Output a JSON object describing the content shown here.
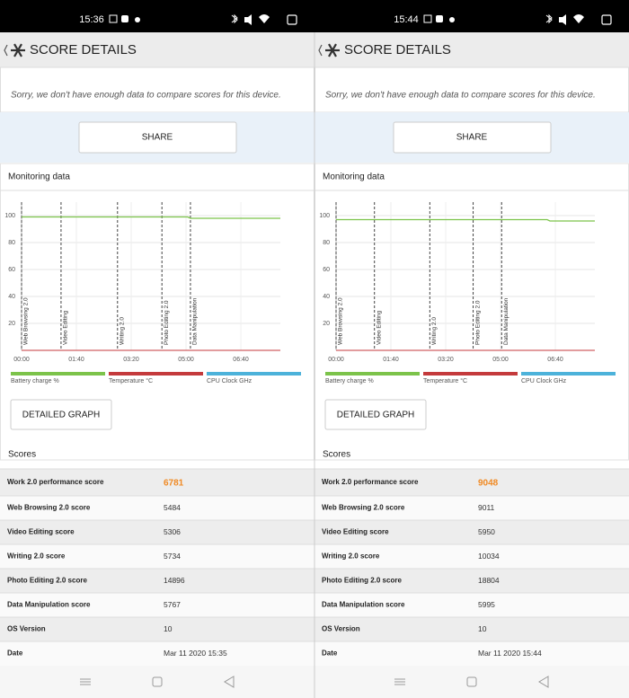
{
  "panels": [
    {
      "status_time": "15:36",
      "title": "SCORE DETAILS",
      "notice": "Sorry, we don't have enough data to compare scores for this device.",
      "share_button": "SHARE",
      "monitoring": {
        "heading": "Monitoring data",
        "chart": {
          "type": "line",
          "ylim": [
            0,
            100
          ],
          "yticks": [
            20,
            40,
            60,
            80,
            100
          ],
          "xlim": [
            0,
            472
          ],
          "xticks": [
            {
              "value": 0,
              "label": "00:00"
            },
            {
              "value": 100,
              "label": "01:40"
            },
            {
              "value": 200,
              "label": "03:20"
            },
            {
              "value": 300,
              "label": "05:00"
            },
            {
              "value": 400,
              "label": "06:40"
            }
          ],
          "markers": [
            {
              "label": "Web Browsing 2.0",
              "x": 0
            },
            {
              "label": "Video Editing",
              "x": 72
            },
            {
              "label": "Writing 2.0",
              "x": 175
            },
            {
              "label": "Photo Editing 2.0",
              "x": 256
            },
            {
              "label": "Data Manipulation",
              "x": 308
            }
          ],
          "series": [
            {
              "name": "Battery charge %",
              "color": "#7cc34a",
              "x": [
                0,
                303,
                308,
                472
              ],
              "values": [
                99,
                99,
                98,
                98
              ]
            },
            {
              "name": "Temperature °C",
              "color": "#c43a3c"
            },
            {
              "name": "CPU Clock GHz",
              "color": "#4cb2da"
            }
          ]
        }
      },
      "detailed_button": "DETAILED GRAPH",
      "scores_heading": "Scores",
      "scores": {
        "rows": [
          [
            "Work 2.0 performance score",
            6781
          ],
          [
            "Web Browsing 2.0 score",
            5484
          ],
          [
            "Video Editing score",
            5306
          ],
          [
            "Writing 2.0 score",
            5734
          ],
          [
            "Photo Editing 2.0 score",
            14896
          ],
          [
            "Data Manipulation score",
            5767
          ],
          [
            "OS Version",
            10
          ],
          [
            "Date",
            "Mar 11 2020 15:35"
          ]
        ]
      }
    },
    {
      "status_time": "15:44",
      "title": "SCORE DETAILS",
      "notice": "Sorry, we don't have enough data to compare scores for this device.",
      "share_button": "SHARE",
      "monitoring": {
        "heading": "Monitoring data",
        "chart": {
          "type": "line",
          "ylim": [
            0,
            100
          ],
          "yticks": [
            20,
            40,
            60,
            80,
            100
          ],
          "xlim": [
            0,
            472
          ],
          "xticks": [
            {
              "value": 0,
              "label": "00:00"
            },
            {
              "value": 100,
              "label": "01:40"
            },
            {
              "value": 200,
              "label": "03:20"
            },
            {
              "value": 300,
              "label": "05:00"
            },
            {
              "value": 400,
              "label": "06:40"
            }
          ],
          "markers": [
            {
              "label": "Web Browsing 2.0",
              "x": 0
            },
            {
              "label": "Video Editing",
              "x": 70
            },
            {
              "label": "Writing 2.0",
              "x": 171
            },
            {
              "label": "Photo Editing 2.0",
              "x": 250
            },
            {
              "label": "Data Manipulation",
              "x": 302
            }
          ],
          "series": [
            {
              "name": "Battery charge %",
              "color": "#7cc34a",
              "x": [
                0,
                385,
                390,
                472
              ],
              "values": [
                97,
                97,
                96,
                96
              ]
            },
            {
              "name": "Temperature °C",
              "color": "#c43a3c"
            },
            {
              "name": "CPU Clock GHz",
              "color": "#4cb2da"
            }
          ]
        }
      },
      "detailed_button": "DETAILED GRAPH",
      "scores_heading": "Scores",
      "scores": {
        "rows": [
          [
            "Work 2.0 performance score",
            9048
          ],
          [
            "Web Browsing 2.0 score",
            9011
          ],
          [
            "Video Editing score",
            5950
          ],
          [
            "Writing 2.0 score",
            10034
          ],
          [
            "Photo Editing 2.0 score",
            18804
          ],
          [
            "Data Manipulation score",
            5995
          ],
          [
            "OS Version",
            10
          ],
          [
            "Date",
            "Mar 11 2020 15:44"
          ]
        ]
      }
    }
  ]
}
